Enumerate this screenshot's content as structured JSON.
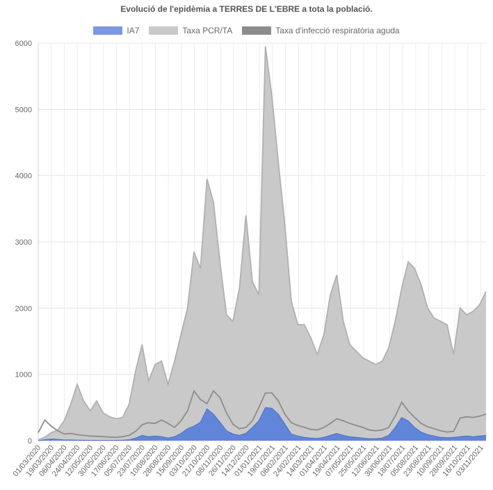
{
  "chart_data": {
    "type": "area",
    "title": "Evolució de l'epidèmia a TERRES DE L'EBRE a tota la població.",
    "xlabel": "",
    "ylabel": "",
    "ylim": [
      0,
      6000
    ],
    "y_ticks": [
      0,
      1000,
      2000,
      3000,
      4000,
      5000,
      6000
    ],
    "grid": true,
    "legend_position": "top",
    "x_tick_labels": [
      "01/03/2020",
      "19/03/2020",
      "06/04/2020",
      "24/04/2020",
      "12/05/2020",
      "30/05/2020",
      "17/06/2020",
      "05/07/2020",
      "23/07/2020",
      "10/08/2020",
      "28/08/2020",
      "15/09/2020",
      "03/10/2020",
      "21/10/2020",
      "08/11/2020",
      "26/11/2020",
      "14/12/2020",
      "01/01/2021",
      "19/01/2021",
      "06/02/2021",
      "24/02/2021",
      "14/03/2021",
      "01/04/2021",
      "19/04/2021",
      "07/05/2021",
      "25/05/2021",
      "12/06/2021",
      "30/06/2021",
      "18/07/2021",
      "05/08/2021",
      "23/08/2021",
      "10/09/2021",
      "28/09/2021",
      "16/10/2021",
      "03/11/2021"
    ],
    "x": [
      "01/03/2020",
      "10/03/2020",
      "19/03/2020",
      "28/03/2020",
      "06/04/2020",
      "15/04/2020",
      "24/04/2020",
      "03/05/2020",
      "12/05/2020",
      "21/05/2020",
      "30/05/2020",
      "08/06/2020",
      "17/06/2020",
      "26/06/2020",
      "05/07/2020",
      "14/07/2020",
      "23/07/2020",
      "01/08/2020",
      "10/08/2020",
      "19/08/2020",
      "28/08/2020",
      "06/09/2020",
      "15/09/2020",
      "24/09/2020",
      "03/10/2020",
      "12/10/2020",
      "21/10/2020",
      "30/10/2020",
      "08/11/2020",
      "17/11/2020",
      "26/11/2020",
      "05/12/2020",
      "14/12/2020",
      "23/12/2020",
      "01/01/2021",
      "10/01/2021",
      "19/01/2021",
      "28/01/2021",
      "06/02/2021",
      "15/02/2021",
      "24/02/2021",
      "05/03/2021",
      "14/03/2021",
      "23/03/2021",
      "01/04/2021",
      "10/04/2021",
      "19/04/2021",
      "28/04/2021",
      "07/05/2021",
      "16/05/2021",
      "25/05/2021",
      "03/06/2021",
      "12/06/2021",
      "21/06/2021",
      "30/06/2021",
      "09/07/2021",
      "18/07/2021",
      "27/07/2021",
      "05/08/2021",
      "14/08/2021",
      "23/08/2021",
      "01/09/2021",
      "10/09/2021",
      "19/09/2021",
      "28/09/2021",
      "07/10/2021",
      "16/10/2021",
      "25/10/2021",
      "03/11/2021",
      "12/11/2021"
    ],
    "series": [
      {
        "name": "Taxa PCR/TA",
        "color": "#c9c9c9",
        "values": [
          10,
          50,
          120,
          160,
          300,
          550,
          850,
          600,
          450,
          600,
          420,
          360,
          330,
          350,
          550,
          1050,
          1450,
          900,
          1150,
          1200,
          850,
          1200,
          1600,
          2000,
          2850,
          2600,
          3950,
          3600,
          2700,
          1900,
          1800,
          2300,
          3400,
          2400,
          2200,
          5950,
          5200,
          4200,
          3250,
          2100,
          1750,
          1750,
          1550,
          1300,
          1600,
          2200,
          2500,
          1800,
          1450,
          1350,
          1250,
          1200,
          1150,
          1200,
          1400,
          1800,
          2300,
          2700,
          2600,
          2350,
          2000,
          1850,
          1800,
          1750,
          1300,
          2000,
          1900,
          1950,
          2050,
          2250
        ]
      },
      {
        "name": "Taxa d'infecció respiratòria aguda",
        "color": "#8c8c8c",
        "values": [
          120,
          310,
          220,
          150,
          100,
          110,
          90,
          80,
          70,
          65,
          60,
          55,
          50,
          60,
          80,
          140,
          240,
          270,
          260,
          310,
          260,
          200,
          300,
          450,
          750,
          620,
          560,
          750,
          650,
          420,
          250,
          180,
          200,
          300,
          500,
          720,
          720,
          600,
          400,
          270,
          230,
          200,
          170,
          160,
          200,
          260,
          330,
          300,
          260,
          230,
          200,
          160,
          150,
          160,
          200,
          370,
          580,
          450,
          350,
          260,
          210,
          180,
          150,
          130,
          140,
          340,
          360,
          350,
          370,
          400
        ]
      },
      {
        "name": "IA7",
        "color": "#5c82d9",
        "values": [
          0,
          15,
          25,
          20,
          10,
          10,
          8,
          6,
          5,
          5,
          4,
          4,
          5,
          8,
          15,
          40,
          80,
          60,
          70,
          60,
          40,
          60,
          110,
          180,
          220,
          280,
          480,
          400,
          280,
          150,
          100,
          80,
          110,
          200,
          300,
          500,
          490,
          400,
          250,
          100,
          70,
          50,
          40,
          35,
          50,
          80,
          110,
          80,
          60,
          50,
          40,
          30,
          30,
          40,
          80,
          200,
          350,
          300,
          200,
          130,
          90,
          70,
          50,
          45,
          50,
          60,
          70,
          60,
          70,
          80
        ]
      }
    ],
    "legend": [
      {
        "label": "IA7",
        "color": "#7b97e0"
      },
      {
        "label": "Taxa PCR/TA",
        "color": "#c9c9c9"
      },
      {
        "label": "Taxa d'infecció respiratòria aguda",
        "color": "#8c8c8c"
      }
    ]
  }
}
